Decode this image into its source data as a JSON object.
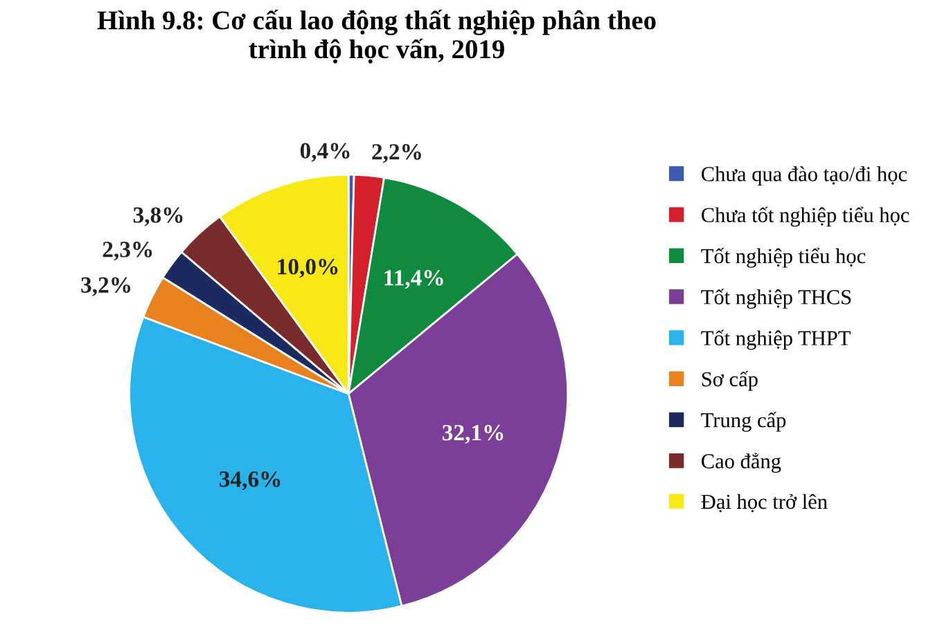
{
  "chart_data": {
    "type": "pie",
    "title": "Hình 9.8: Cơ cấu lao động thất nghiệp phân theo\ntrình độ học vấn, 2019",
    "categories": [
      "Chưa qua đào tạo/đi học",
      "Chưa tốt nghiệp tiểu học",
      "Tốt nghiệp tiểu học",
      "Tốt nghiệp THCS",
      "Tốt nghiệp THPT",
      "Sơ cấp",
      "Trung cấp",
      "Cao đẳng",
      "Đại học trở lên"
    ],
    "values": [
      0.4,
      2.2,
      11.4,
      32.1,
      34.6,
      3.2,
      2.3,
      3.8,
      10.0
    ],
    "colors": [
      "#3a5bb0",
      "#d4202c",
      "#108a3e",
      "#7b3f98",
      "#2ab2ea",
      "#e8821e",
      "#1c2a60",
      "#7a2c2c",
      "#f7e817"
    ],
    "value_labels": [
      "0,4%",
      "2,2%",
      "11,4%",
      "32,1%",
      "34,6%",
      "3,2%",
      "2,3%",
      "3,8%",
      "10,0%"
    ],
    "legend": "right"
  }
}
